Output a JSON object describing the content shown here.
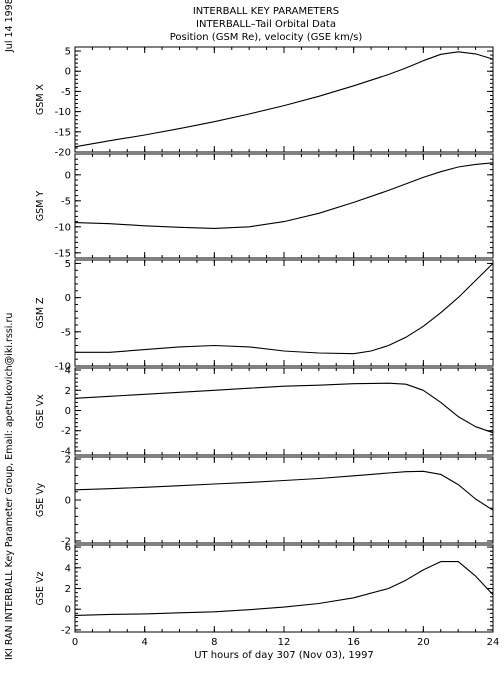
{
  "header": {
    "date_label": "Jul 14 1998",
    "title_lines": [
      "INTERBALL KEY PARAMETERS",
      "INTERBALL–Tail Orbital Data",
      "Position (GSM Re), velocity (GSE km/s)"
    ]
  },
  "credit": "IKI RAN INTERBALL Key Parameter Group, Email: apetrukovich@iki.rssi.ru",
  "chart_data": {
    "type": "line",
    "grid": false,
    "x": {
      "label": "UT hours of day 307 (Nov 03), 1997",
      "range": [
        0,
        24
      ],
      "ticks": [
        0,
        4,
        8,
        12,
        16,
        20,
        24
      ],
      "tick_labels": [
        "0",
        "4",
        "8",
        "12",
        "16",
        "20",
        "24"
      ]
    },
    "panels": [
      {
        "name": "GSM X",
        "ylim": [
          -20,
          6
        ],
        "yticks": [
          -20,
          -15,
          -10,
          -5,
          0,
          5
        ],
        "ytick_labels": [
          "-20",
          "-15",
          "-10",
          "-5",
          "0",
          "5"
        ],
        "x": [
          0,
          2,
          4,
          6,
          8,
          10,
          12,
          14,
          16,
          18,
          19,
          20,
          21,
          22,
          23,
          24
        ],
        "y": [
          -18.7,
          -17.2,
          -15.8,
          -14.2,
          -12.5,
          -10.6,
          -8.5,
          -6.2,
          -3.6,
          -0.8,
          0.8,
          2.6,
          4.2,
          4.8,
          4.3,
          3.0
        ]
      },
      {
        "name": "GSM Y",
        "ylim": [
          -16,
          4
        ],
        "yticks": [
          -15,
          -10,
          -5,
          0
        ],
        "ytick_labels": [
          "-15",
          "-10",
          "-5",
          "0"
        ],
        "x": [
          0,
          2,
          4,
          6,
          8,
          10,
          12,
          14,
          16,
          18,
          20,
          21,
          22,
          23,
          24
        ],
        "y": [
          -9.2,
          -9.4,
          -9.8,
          -10.1,
          -10.3,
          -10.0,
          -9.0,
          -7.4,
          -5.3,
          -3.0,
          -0.5,
          0.6,
          1.5,
          2.0,
          2.3
        ]
      },
      {
        "name": "GSM Z",
        "ylim": [
          -10,
          5.5
        ],
        "yticks": [
          -10,
          -5,
          0,
          5
        ],
        "ytick_labels": [
          "-10",
          "-5",
          "0",
          "5"
        ],
        "x": [
          0,
          2,
          4,
          6,
          8,
          10,
          12,
          14,
          16,
          17,
          18,
          19,
          20,
          21,
          22,
          23,
          24
        ],
        "y": [
          -8.0,
          -8.0,
          -7.6,
          -7.2,
          -7.0,
          -7.2,
          -7.8,
          -8.1,
          -8.2,
          -7.8,
          -7.0,
          -5.8,
          -4.2,
          -2.2,
          0.0,
          2.5,
          5.0
        ]
      },
      {
        "name": "GSE Vx",
        "ylim": [
          -4.4,
          4.2
        ],
        "yticks": [
          -4,
          -2,
          0,
          2,
          4
        ],
        "ytick_labels": [
          "-4",
          "-2",
          "0",
          "2",
          "4"
        ],
        "x": [
          0,
          2,
          4,
          6,
          8,
          10,
          12,
          14,
          16,
          18,
          19,
          20,
          21,
          22,
          23,
          24
        ],
        "y": [
          1.2,
          1.4,
          1.6,
          1.8,
          2.0,
          2.2,
          2.4,
          2.5,
          2.65,
          2.7,
          2.6,
          2.0,
          0.8,
          -0.6,
          -1.6,
          -2.2
        ]
      },
      {
        "name": "GSE Vy",
        "ylim": [
          -2.1,
          2.1
        ],
        "yticks": [
          -2,
          0,
          2
        ],
        "ytick_labels": [
          "-2",
          "0",
          "2"
        ],
        "x": [
          0,
          2,
          4,
          6,
          8,
          10,
          12,
          14,
          16,
          18,
          19,
          20,
          21,
          22,
          23,
          24
        ],
        "y": [
          0.5,
          0.55,
          0.62,
          0.7,
          0.78,
          0.86,
          0.95,
          1.05,
          1.18,
          1.32,
          1.38,
          1.4,
          1.25,
          0.75,
          0.05,
          -0.5
        ]
      },
      {
        "name": "GSE Vz",
        "ylim": [
          -2.2,
          6.2
        ],
        "yticks": [
          -2,
          0,
          2,
          4,
          6
        ],
        "ytick_labels": [
          "-2",
          "0",
          "2",
          "4",
          "6"
        ],
        "x": [
          0,
          2,
          4,
          6,
          8,
          10,
          12,
          14,
          16,
          18,
          19,
          20,
          21,
          22,
          23,
          24
        ],
        "y": [
          -0.6,
          -0.5,
          -0.45,
          -0.35,
          -0.25,
          -0.05,
          0.2,
          0.55,
          1.1,
          2.0,
          2.8,
          3.8,
          4.6,
          4.6,
          3.2,
          1.4
        ]
      }
    ]
  }
}
